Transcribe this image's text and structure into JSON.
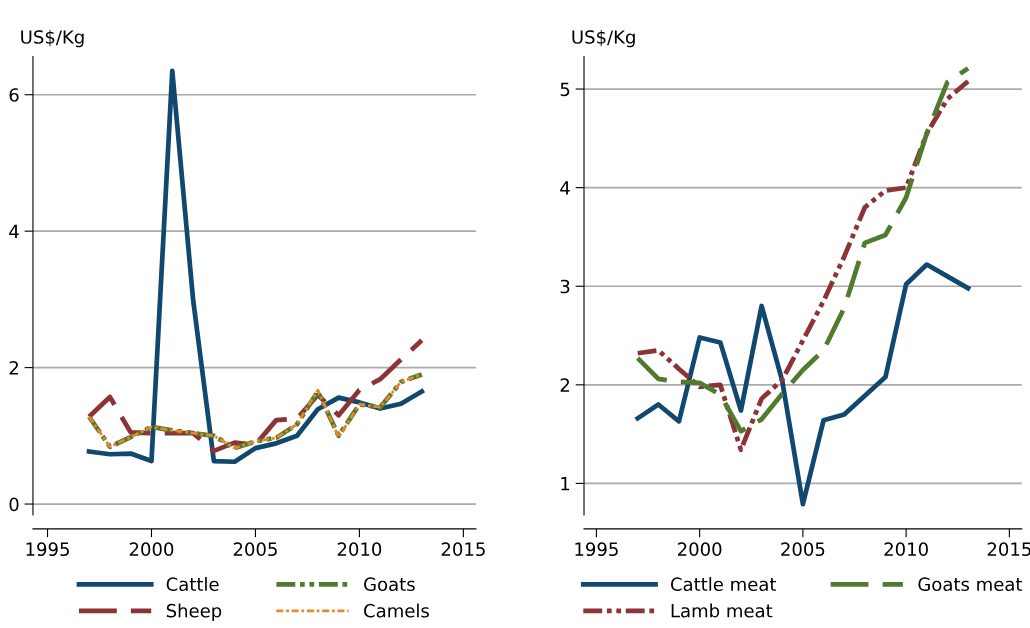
{
  "chart_data": [
    {
      "type": "line",
      "ylabel": "US$/Kg",
      "x": [
        1997,
        1998,
        1999,
        2000,
        2001,
        2002,
        2003,
        2004,
        2005,
        2006,
        2007,
        2008,
        2009,
        2010,
        2011,
        2012,
        2013
      ],
      "xlim": [
        1994.3,
        2015.6
      ],
      "xticks": [
        1995,
        2000,
        2005,
        2010,
        2015
      ],
      "ylim": [
        -0.16,
        6.56
      ],
      "yticks": [
        0,
        2,
        4,
        6
      ],
      "grid": "y",
      "legend": "bottom",
      "series": [
        {
          "name": "Cattle",
          "color": "#11486f",
          "line_style": "solid",
          "values": [
            0.77,
            0.73,
            0.74,
            0.63,
            6.35,
            3.0,
            0.63,
            0.62,
            0.82,
            0.89,
            1.0,
            1.39,
            1.56,
            1.49,
            1.4,
            1.47,
            1.65
          ]
        },
        {
          "name": "Sheep",
          "color": "#8b3336",
          "line_style": "longdash",
          "values": [
            1.28,
            1.57,
            1.05,
            1.04,
            1.04,
            1.04,
            0.78,
            0.9,
            0.87,
            1.23,
            1.25,
            1.6,
            1.3,
            1.67,
            1.83,
            2.12,
            2.4
          ]
        },
        {
          "name": "Goats",
          "color": "#517a2e",
          "line_style": "dashdotdot",
          "values": [
            1.28,
            0.84,
            0.98,
            1.13,
            1.08,
            1.04,
            1.0,
            0.82,
            0.92,
            0.97,
            1.17,
            1.65,
            1.0,
            1.46,
            1.42,
            1.79,
            1.9
          ]
        },
        {
          "name": "Camels",
          "color": "#e8862a",
          "line_style": "dashdotted",
          "values": [
            1.28,
            0.84,
            0.98,
            1.13,
            1.08,
            1.04,
            1.0,
            0.82,
            0.92,
            0.97,
            1.17,
            1.67,
            0.98,
            1.46,
            1.42,
            1.79,
            1.9
          ]
        }
      ]
    },
    {
      "type": "line",
      "ylabel": "US$/Kg",
      "x": [
        1997,
        1998,
        1999,
        2000,
        2001,
        2002,
        2003,
        2004,
        2005,
        2006,
        2007,
        2008,
        2009,
        2010,
        2011,
        2012,
        2013
      ],
      "xlim": [
        1994.4,
        2015.6
      ],
      "xticks": [
        1995,
        2000,
        2005,
        2010,
        2015
      ],
      "ylim": [
        0.68,
        5.33
      ],
      "yticks": [
        1,
        2,
        3,
        4,
        5
      ],
      "grid": "y",
      "legend": "bottom",
      "series": [
        {
          "name": "Cattle meat",
          "color": "#11486f",
          "line_style": "solid",
          "values": [
            1.66,
            1.8,
            1.63,
            2.48,
            2.43,
            1.74,
            2.8,
            2.04,
            0.79,
            1.64,
            1.7,
            1.89,
            2.08,
            3.02,
            3.22,
            3.1,
            2.98
          ]
        },
        {
          "name": "Lamb meat",
          "color": "#8b3336",
          "line_style": "dashdotdot",
          "values": [
            2.32,
            2.35,
            2.16,
            1.98,
            2.0,
            1.34,
            1.86,
            2.05,
            2.45,
            2.85,
            3.3,
            3.8,
            3.97,
            4.0,
            4.55,
            4.9,
            5.08
          ]
        },
        {
          "name": "Goats meat",
          "color": "#517a2e",
          "line_style": "longdash",
          "values": [
            2.27,
            2.06,
            2.03,
            2.02,
            1.9,
            1.53,
            1.65,
            1.91,
            2.15,
            2.35,
            2.78,
            3.44,
            3.52,
            3.9,
            4.55,
            5.07,
            5.21
          ]
        }
      ]
    }
  ]
}
